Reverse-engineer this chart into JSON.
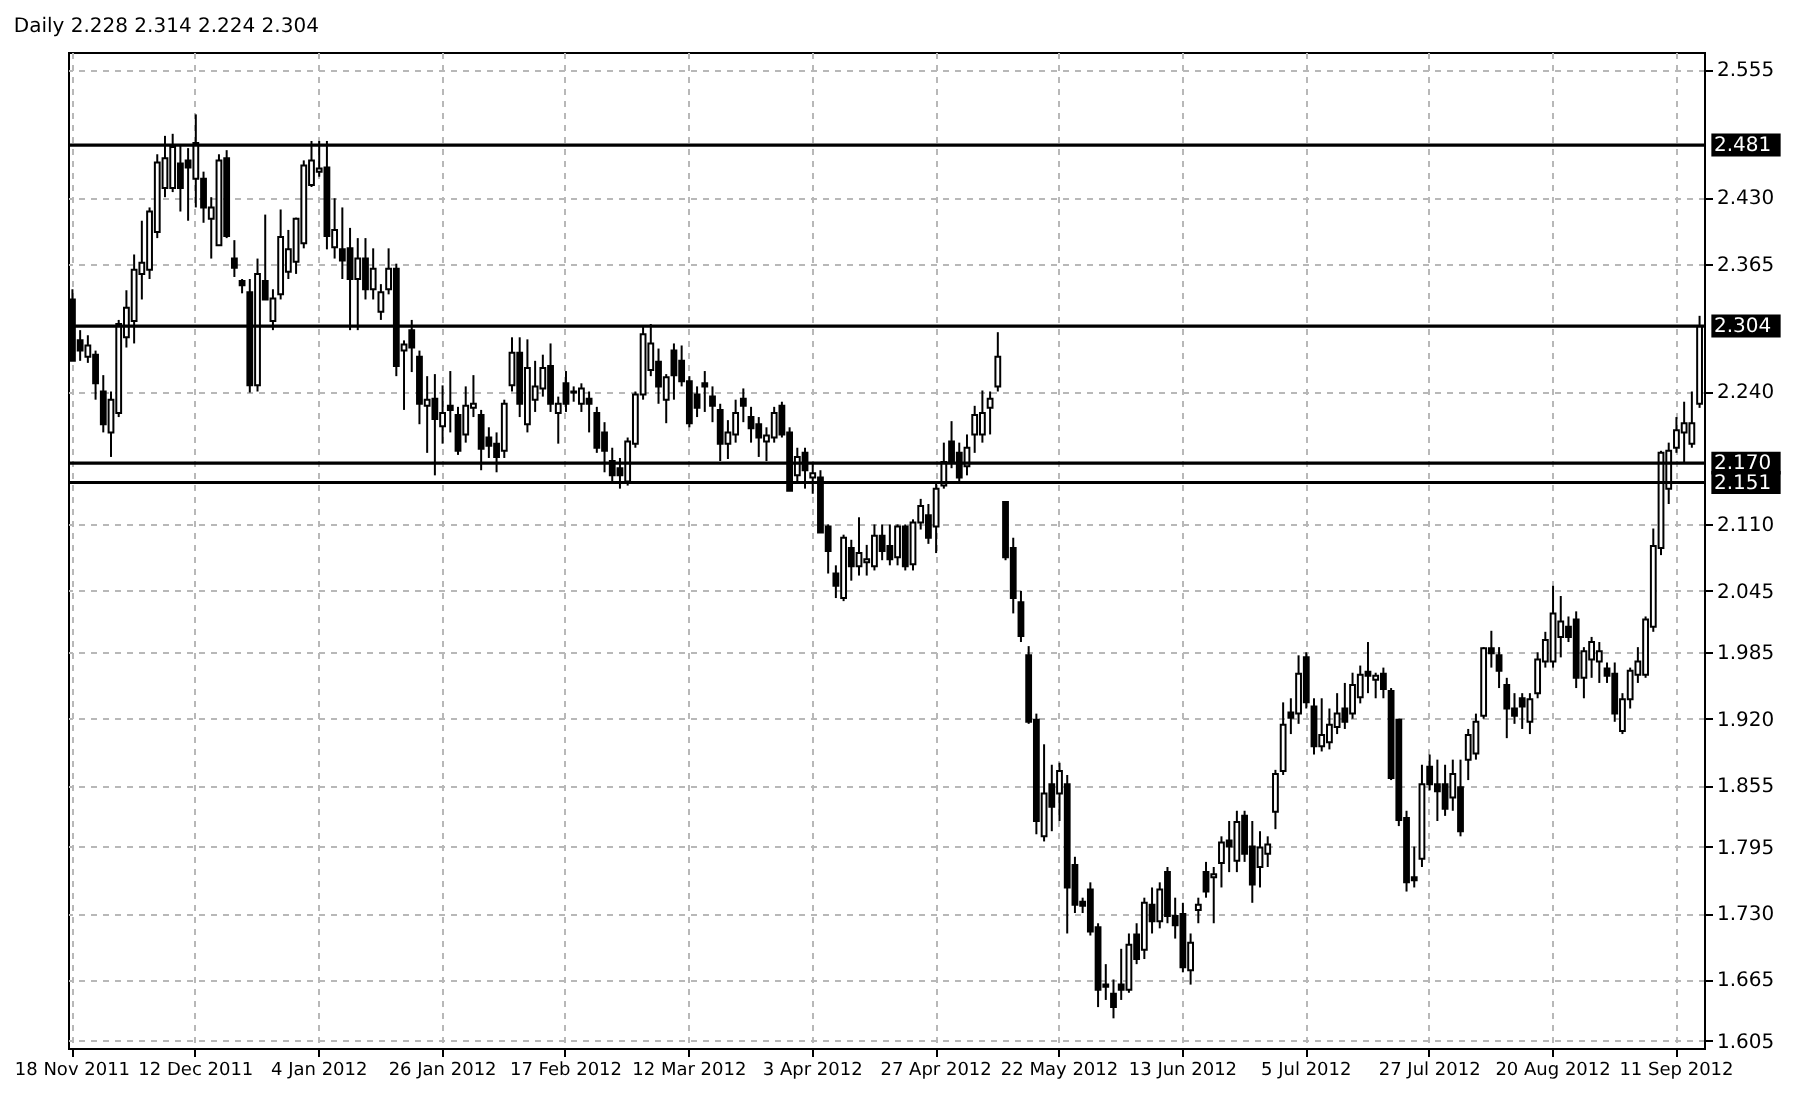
{
  "chart_data": {
    "type": "candlestick",
    "title": "Daily  2.228 2.314 2.224 2.304",
    "categories": [
      "18 Nov 2011",
      null,
      null,
      null,
      null,
      null,
      null,
      null,
      null,
      null,
      null,
      null,
      null,
      null,
      null,
      null,
      "12 Dec 2011",
      null,
      null,
      null,
      null,
      null,
      null,
      null,
      null,
      null,
      null,
      null,
      null,
      null,
      null,
      null,
      "4 Jan 2012",
      null,
      null,
      null,
      null,
      null,
      null,
      null,
      null,
      null,
      null,
      null,
      null,
      null,
      null,
      null,
      "26 Jan 2012",
      null,
      null,
      null,
      null,
      null,
      null,
      null,
      null,
      null,
      null,
      null,
      null,
      null,
      null,
      null,
      "17 Feb 2012",
      null,
      null,
      null,
      null,
      null,
      null,
      null,
      null,
      null,
      null,
      null,
      null,
      null,
      null,
      null,
      "12 Mar 2012",
      null,
      null,
      null,
      null,
      null,
      null,
      null,
      null,
      null,
      null,
      null,
      null,
      null,
      null,
      null,
      "3 Apr 2012",
      null,
      null,
      null,
      null,
      null,
      null,
      null,
      null,
      null,
      null,
      null,
      null,
      null,
      null,
      null,
      "27 Apr 2012",
      null,
      null,
      null,
      null,
      null,
      null,
      null,
      null,
      null,
      null,
      null,
      null,
      null,
      null,
      null,
      "22 May 2012",
      null,
      null,
      null,
      null,
      null,
      null,
      null,
      null,
      null,
      null,
      null,
      null,
      null,
      null,
      null,
      "13 Jun 2012",
      null,
      null,
      null,
      null,
      null,
      null,
      null,
      null,
      null,
      null,
      null,
      null,
      null,
      null,
      null,
      "5 Jul 2012",
      null,
      null,
      null,
      null,
      null,
      null,
      null,
      null,
      null,
      null,
      null,
      null,
      null,
      null,
      null,
      "27 Jul 2012",
      null,
      null,
      null,
      null,
      null,
      null,
      null,
      null,
      null,
      null,
      null,
      null,
      null,
      null,
      null,
      "20 Aug 2012",
      null,
      null,
      null,
      null,
      null,
      null,
      null,
      null,
      null,
      null,
      null,
      null,
      null,
      null,
      null,
      "11 Sep 2012",
      null,
      null,
      null
    ],
    "ohlc": [
      [
        2.33,
        2.34,
        2.27,
        2.27
      ],
      [
        2.29,
        2.3,
        2.27,
        2.28
      ],
      [
        2.274,
        2.295,
        2.268,
        2.285
      ],
      [
        2.276,
        2.28,
        2.232,
        2.248
      ],
      [
        2.24,
        2.256,
        2.2,
        2.208
      ],
      [
        2.2,
        2.24,
        2.176,
        2.232
      ],
      [
        2.219,
        2.31,
        2.215,
        2.306
      ],
      [
        2.293,
        2.339,
        2.283,
        2.322
      ],
      [
        2.309,
        2.374,
        2.287,
        2.359
      ],
      [
        2.355,
        2.407,
        2.33,
        2.366
      ],
      [
        2.359,
        2.42,
        2.35,
        2.416
      ],
      [
        2.396,
        2.472,
        2.39,
        2.464
      ],
      [
        2.439,
        2.49,
        2.43,
        2.468
      ],
      [
        2.439,
        2.492,
        2.435,
        2.479
      ],
      [
        2.463,
        2.481,
        2.416,
        2.439
      ],
      [
        2.466,
        2.478,
        2.407,
        2.459
      ],
      [
        2.448,
        2.511,
        2.42,
        2.483
      ],
      [
        2.448,
        2.455,
        2.405,
        2.42
      ],
      [
        2.409,
        2.43,
        2.37,
        2.42
      ],
      [
        2.383,
        2.472,
        2.383,
        2.466
      ],
      [
        2.468,
        2.476,
        2.39,
        2.392
      ],
      [
        2.37,
        2.388,
        2.352,
        2.361
      ],
      [
        2.348,
        2.35,
        2.336,
        2.344
      ],
      [
        2.337,
        2.35,
        2.239,
        2.246
      ],
      [
        2.246,
        2.37,
        2.24,
        2.355
      ],
      [
        2.348,
        2.413,
        2.33,
        2.33
      ],
      [
        2.309,
        2.34,
        2.3,
        2.331
      ],
      [
        2.335,
        2.418,
        2.33,
        2.391
      ],
      [
        2.357,
        2.398,
        2.35,
        2.379
      ],
      [
        2.367,
        2.41,
        2.355,
        2.409
      ],
      [
        2.385,
        2.466,
        2.38,
        2.461
      ],
      [
        2.442,
        2.485,
        2.44,
        2.466
      ],
      [
        2.455,
        2.485,
        2.45,
        2.458
      ],
      [
        2.459,
        2.485,
        2.379,
        2.392
      ],
      [
        2.381,
        2.429,
        2.37,
        2.398
      ],
      [
        2.379,
        2.42,
        2.35,
        2.368
      ],
      [
        2.38,
        2.4,
        2.3,
        2.35
      ],
      [
        2.35,
        2.39,
        2.3,
        2.37
      ],
      [
        2.37,
        2.39,
        2.33,
        2.34
      ],
      [
        2.34,
        2.38,
        2.33,
        2.36
      ],
      [
        2.318,
        2.345,
        2.31,
        2.337
      ],
      [
        2.34,
        2.38,
        2.335,
        2.36
      ],
      [
        2.36,
        2.365,
        2.255,
        2.265
      ],
      [
        2.28,
        2.29,
        2.222,
        2.286
      ],
      [
        2.3,
        2.31,
        2.259,
        2.283
      ],
      [
        2.274,
        2.28,
        2.208,
        2.228
      ],
      [
        2.226,
        2.255,
        2.18,
        2.232
      ],
      [
        2.233,
        2.257,
        2.158,
        2.213
      ],
      [
        2.206,
        2.246,
        2.189,
        2.219
      ],
      [
        2.226,
        2.26,
        2.2,
        2.222
      ],
      [
        2.217,
        2.225,
        2.178,
        2.182
      ],
      [
        2.198,
        2.245,
        2.19,
        2.226
      ],
      [
        2.224,
        2.256,
        2.215,
        2.228
      ],
      [
        2.217,
        2.222,
        2.163,
        2.184
      ],
      [
        2.195,
        2.205,
        2.175,
        2.187
      ],
      [
        2.189,
        2.2,
        2.161,
        2.176
      ],
      [
        2.182,
        2.232,
        2.175,
        2.228
      ],
      [
        2.246,
        2.293,
        2.24,
        2.278
      ],
      [
        2.278,
        2.293,
        2.215,
        2.228
      ],
      [
        2.208,
        2.291,
        2.2,
        2.263
      ],
      [
        2.232,
        2.27,
        2.22,
        2.245
      ],
      [
        2.243,
        2.276,
        2.235,
        2.263
      ],
      [
        2.265,
        2.287,
        2.22,
        2.228
      ],
      [
        2.219,
        2.235,
        2.189,
        2.228
      ],
      [
        2.248,
        2.26,
        2.22,
        2.228
      ],
      [
        2.24,
        2.245,
        2.23,
        2.239
      ],
      [
        2.228,
        2.248,
        2.22,
        2.243
      ],
      [
        2.233,
        2.24,
        2.2,
        2.228
      ],
      [
        2.219,
        2.225,
        2.18,
        2.185
      ],
      [
        2.2,
        2.21,
        2.161,
        2.182
      ],
      [
        2.172,
        2.185,
        2.152,
        2.158
      ],
      [
        2.165,
        2.175,
        2.145,
        2.158
      ],
      [
        2.152,
        2.195,
        2.148,
        2.191
      ],
      [
        2.189,
        2.24,
        2.185,
        2.237
      ],
      [
        2.237,
        2.304,
        2.232,
        2.296
      ],
      [
        2.261,
        2.306,
        2.255,
        2.287
      ],
      [
        2.269,
        2.282,
        2.228,
        2.245
      ],
      [
        2.232,
        2.257,
        2.209,
        2.254
      ],
      [
        2.28,
        2.287,
        2.232,
        2.256
      ],
      [
        2.27,
        2.285,
        2.245,
        2.25
      ],
      [
        2.25,
        2.255,
        2.205,
        2.209
      ],
      [
        2.237,
        2.245,
        2.215,
        2.224
      ],
      [
        2.248,
        2.26,
        2.22,
        2.245
      ],
      [
        2.235,
        2.245,
        2.21,
        2.226
      ],
      [
        2.222,
        2.228,
        2.172,
        2.189
      ],
      [
        2.189,
        2.212,
        2.174,
        2.2
      ],
      [
        2.198,
        2.232,
        2.19,
        2.219
      ],
      [
        2.233,
        2.243,
        2.21,
        2.226
      ],
      [
        2.215,
        2.225,
        2.19,
        2.204
      ],
      [
        2.208,
        2.215,
        2.176,
        2.195
      ],
      [
        2.191,
        2.205,
        2.172,
        2.197
      ],
      [
        2.195,
        2.225,
        2.19,
        2.219
      ],
      [
        2.226,
        2.23,
        2.195,
        2.198
      ],
      [
        2.2,
        2.205,
        2.143,
        2.143
      ],
      [
        2.158,
        2.185,
        2.152,
        2.176
      ],
      [
        2.18,
        2.185,
        2.145,
        2.163
      ],
      [
        2.156,
        2.17,
        2.14,
        2.16
      ],
      [
        2.156,
        2.163,
        2.102,
        2.102
      ],
      [
        2.108,
        2.11,
        2.062,
        2.084
      ],
      [
        2.062,
        2.07,
        2.038,
        2.05
      ],
      [
        2.038,
        2.1,
        2.035,
        2.097
      ],
      [
        2.087,
        2.095,
        2.055,
        2.069
      ],
      [
        2.069,
        2.117,
        2.06,
        2.082
      ],
      [
        2.073,
        2.09,
        2.06,
        2.076
      ],
      [
        2.069,
        2.11,
        2.065,
        2.099
      ],
      [
        2.099,
        2.11,
        2.075,
        2.084
      ],
      [
        2.089,
        2.11,
        2.07,
        2.076
      ],
      [
        2.078,
        2.11,
        2.07,
        2.108
      ],
      [
        2.108,
        2.11,
        2.065,
        2.069
      ],
      [
        2.071,
        2.115,
        2.065,
        2.112
      ],
      [
        2.112,
        2.135,
        2.105,
        2.128
      ],
      [
        2.119,
        2.13,
        2.091,
        2.097
      ],
      [
        2.108,
        2.15,
        2.082,
        2.145
      ],
      [
        2.148,
        2.19,
        2.145,
        2.171
      ],
      [
        2.191,
        2.211,
        2.165,
        2.171
      ],
      [
        2.18,
        2.19,
        2.152,
        2.156
      ],
      [
        2.167,
        2.198,
        2.158,
        2.185
      ],
      [
        2.198,
        2.226,
        2.18,
        2.217
      ],
      [
        2.198,
        2.241,
        2.19,
        2.219
      ],
      [
        2.224,
        2.24,
        2.198,
        2.233
      ],
      [
        2.245,
        2.298,
        2.24,
        2.274
      ],
      [
        2.132,
        2.132,
        2.075,
        2.078
      ],
      [
        2.087,
        2.097,
        2.023,
        2.038
      ],
      [
        2.034,
        2.045,
        1.995,
        2.001
      ],
      [
        1.982,
        1.991,
        1.915,
        1.917
      ],
      [
        1.919,
        1.925,
        1.807,
        1.82
      ],
      [
        1.805,
        1.895,
        1.8,
        1.847
      ],
      [
        1.856,
        1.875,
        1.81,
        1.834
      ],
      [
        1.847,
        1.877,
        1.82,
        1.869
      ],
      [
        1.856,
        1.865,
        1.71,
        1.755
      ],
      [
        1.777,
        1.785,
        1.73,
        1.738
      ],
      [
        1.741,
        1.745,
        1.73,
        1.737
      ],
      [
        1.753,
        1.76,
        1.708,
        1.712
      ],
      [
        1.716,
        1.72,
        1.638,
        1.655
      ],
      [
        1.66,
        1.68,
        1.645,
        1.658
      ],
      [
        1.651,
        1.665,
        1.627,
        1.638
      ],
      [
        1.66,
        1.695,
        1.645,
        1.655
      ],
      [
        1.655,
        1.71,
        1.652,
        1.699
      ],
      [
        1.709,
        1.72,
        1.68,
        1.685
      ],
      [
        1.694,
        1.745,
        1.685,
        1.74
      ],
      [
        1.738,
        1.755,
        1.71,
        1.722
      ],
      [
        1.722,
        1.76,
        1.715,
        1.753
      ],
      [
        1.77,
        1.775,
        1.72,
        1.727
      ],
      [
        1.727,
        1.745,
        1.705,
        1.718
      ],
      [
        1.729,
        1.74,
        1.672,
        1.677
      ],
      [
        1.674,
        1.71,
        1.66,
        1.701
      ],
      [
        1.733,
        1.745,
        1.72,
        1.738
      ],
      [
        1.77,
        1.78,
        1.745,
        1.751
      ],
      [
        1.765,
        1.775,
        1.72,
        1.768
      ],
      [
        1.779,
        1.805,
        1.755,
        1.799
      ],
      [
        1.801,
        1.82,
        1.77,
        1.795
      ],
      [
        1.781,
        1.83,
        1.77,
        1.819
      ],
      [
        1.825,
        1.83,
        1.78,
        1.788
      ],
      [
        1.795,
        1.82,
        1.74,
        1.758
      ],
      [
        1.775,
        1.81,
        1.755,
        1.794
      ],
      [
        1.788,
        1.805,
        1.775,
        1.797
      ],
      [
        1.829,
        1.87,
        1.812,
        1.866
      ],
      [
        1.869,
        1.936,
        1.865,
        1.914
      ],
      [
        1.926,
        1.94,
        1.905,
        1.921
      ],
      [
        1.925,
        1.982,
        1.915,
        1.964
      ],
      [
        1.98,
        1.985,
        1.93,
        1.936
      ],
      [
        1.932,
        1.94,
        1.885,
        1.893
      ],
      [
        1.893,
        1.94,
        1.888,
        1.904
      ],
      [
        1.897,
        1.93,
        1.89,
        1.914
      ],
      [
        1.912,
        1.945,
        1.905,
        1.925
      ],
      [
        1.93,
        1.955,
        1.91,
        1.917
      ],
      [
        1.925,
        1.965,
        1.92,
        1.953
      ],
      [
        1.941,
        1.972,
        1.935,
        1.963
      ],
      [
        1.966,
        1.995,
        1.945,
        1.962
      ],
      [
        1.958,
        1.965,
        1.94,
        1.962
      ],
      [
        1.964,
        1.97,
        1.94,
        1.949
      ],
      [
        1.947,
        1.95,
        1.86,
        1.862
      ],
      [
        1.919,
        1.92,
        1.815,
        1.821
      ],
      [
        1.823,
        1.83,
        1.751,
        1.76
      ],
      [
        1.765,
        1.795,
        1.755,
        1.762
      ],
      [
        1.783,
        1.875,
        1.775,
        1.856
      ],
      [
        1.873,
        1.885,
        1.85,
        1.856
      ],
      [
        1.856,
        1.88,
        1.82,
        1.849
      ],
      [
        1.856,
        1.875,
        1.825,
        1.832
      ],
      [
        1.843,
        1.88,
        1.83,
        1.866
      ],
      [
        1.853,
        1.88,
        1.805,
        1.81
      ],
      [
        1.88,
        1.91,
        1.86,
        1.904
      ],
      [
        1.886,
        1.925,
        1.88,
        1.917
      ],
      [
        1.923,
        1.99,
        1.92,
        1.989
      ],
      [
        1.989,
        2.006,
        1.97,
        1.984
      ],
      [
        1.982,
        1.99,
        1.95,
        1.967
      ],
      [
        1.953,
        1.96,
        1.901,
        1.93
      ],
      [
        1.93,
        1.945,
        1.915,
        1.923
      ],
      [
        1.94,
        1.945,
        1.91,
        1.932
      ],
      [
        1.917,
        1.945,
        1.905,
        1.939
      ],
      [
        1.945,
        1.985,
        1.94,
        1.978
      ],
      [
        1.976,
        2.005,
        1.97,
        1.997
      ],
      [
        1.976,
        2.05,
        1.97,
        2.023
      ],
      [
        2.0,
        2.04,
        1.98,
        2.015
      ],
      [
        2.01,
        2.02,
        1.995,
        2.0
      ],
      [
        2.017,
        2.025,
        1.95,
        1.96
      ],
      [
        1.96,
        1.99,
        1.94,
        1.986
      ],
      [
        1.978,
        2.0,
        1.96,
        1.995
      ],
      [
        1.976,
        1.995,
        1.955,
        1.986
      ],
      [
        1.969,
        1.975,
        1.955,
        1.962
      ],
      [
        1.964,
        1.975,
        1.917,
        1.925
      ],
      [
        1.908,
        1.945,
        1.905,
        1.939
      ],
      [
        1.939,
        1.97,
        1.93,
        1.967
      ],
      [
        1.963,
        1.99,
        1.955,
        1.976
      ],
      [
        1.963,
        2.02,
        1.96,
        2.017
      ],
      [
        2.01,
        2.106,
        2.005,
        2.089
      ],
      [
        2.087,
        2.182,
        2.08,
        2.18
      ],
      [
        2.145,
        2.19,
        2.13,
        2.182
      ],
      [
        2.185,
        2.215,
        2.18,
        2.202
      ],
      [
        2.2,
        2.23,
        2.17,
        2.209
      ],
      [
        2.189,
        2.24,
        2.185,
        2.209
      ],
      [
        2.228,
        2.314,
        2.224,
        2.304
      ]
    ],
    "ylim": [
      1.598,
      2.572
    ],
    "yticks": [
      2.555,
      {
        "value": 2.43,
        "label": "2.430"
      },
      2.365,
      {
        "value": 2.24,
        "label": "2.240"
      },
      {
        "value": 2.11,
        "label": "2.110"
      },
      2.045,
      1.985,
      {
        "value": 1.92,
        "label": "1.920"
      },
      1.855,
      1.795,
      {
        "value": 1.73,
        "label": "1.730"
      },
      1.665,
      1.605
    ],
    "grid": true,
    "ref_lines": [
      {
        "axis": "y",
        "value": 2.481,
        "label": "2.481"
      },
      {
        "axis": "y",
        "value": 2.304,
        "label": "2.304"
      },
      {
        "axis": "y",
        "value": 2.17,
        "label": "2.170"
      },
      {
        "axis": "y",
        "value": 2.151,
        "label": "2.151"
      }
    ]
  }
}
